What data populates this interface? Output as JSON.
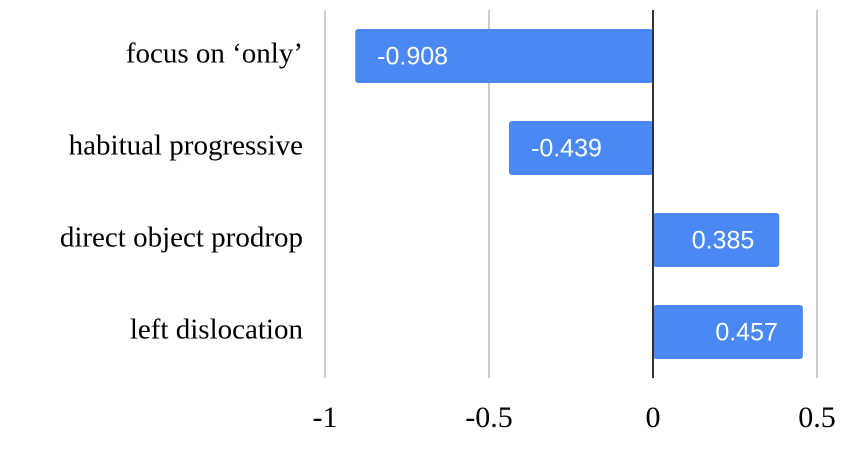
{
  "chart_data": {
    "type": "bar",
    "orientation": "horizontal",
    "categories": [
      "focus on ‘only’",
      "habitual progressive",
      "direct object prodrop",
      "left dislocation"
    ],
    "values": [
      -0.908,
      -0.439,
      0.385,
      0.457
    ],
    "color": "#4a89f3",
    "xlim": [
      -1,
      0.5
    ],
    "xticks": [
      -1,
      -0.5,
      0,
      0.5
    ],
    "grid": true
  }
}
